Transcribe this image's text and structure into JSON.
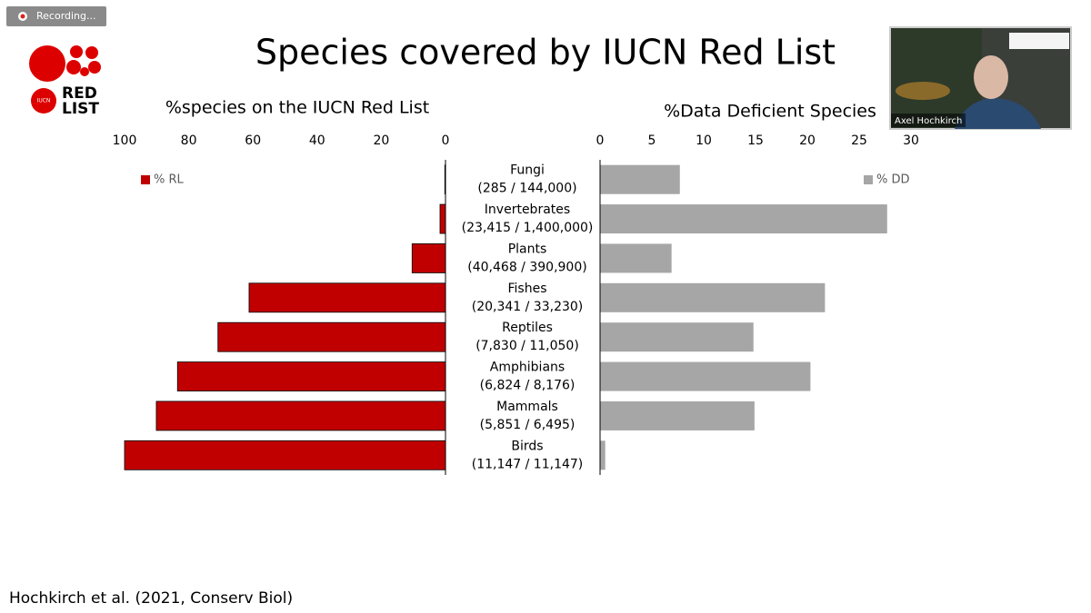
{
  "slide": {
    "recording": "Recording...",
    "title": "Species covered by IUCN Red List",
    "citation": "Hochkirch et al. (2021, Conserv Biol)",
    "logo": {
      "small": "IUCN",
      "line1": "RED",
      "line2": "LIST"
    },
    "speaker": "Axel Hochkirch"
  },
  "chart_data": [
    {
      "type": "bar",
      "orientation": "horizontal",
      "title": "%species on the IUCN Red List",
      "categories": [
        "Fungi",
        "Invertebrates",
        "Plants",
        "Fishes",
        "Reptiles",
        "Amphibians",
        "Mammals",
        "Birds"
      ],
      "category_counts": [
        "(285 / 144,000)",
        "(23,415 / 1,400,000)",
        "(40,468 / 390,900)",
        "(20,341 / 33,230)",
        "(7,830 / 11,050)",
        "(6,824 / 8,176)",
        "(5,851 / 6,495)",
        "(11,147 / 11,147)"
      ],
      "series": [
        {
          "name": "% RL",
          "color": "#c00000",
          "values": [
            0.2,
            1.7,
            10.4,
            61.2,
            70.9,
            83.5,
            90.1,
            100
          ]
        }
      ],
      "xlim": [
        100,
        0
      ],
      "xticks": [
        100,
        80,
        60,
        40,
        20,
        0
      ],
      "grid": false,
      "legend": "upper left"
    },
    {
      "type": "bar",
      "orientation": "horizontal",
      "title": "%Data Deficient Species",
      "series": [
        {
          "name": "% DD",
          "color": "#a6a6a6",
          "values": [
            7.7,
            27.7,
            6.9,
            21.7,
            14.8,
            20.3,
            14.9,
            0.5
          ]
        }
      ],
      "xlim": [
        0,
        30
      ],
      "xticks": [
        0,
        5,
        10,
        15,
        20,
        25,
        30
      ],
      "grid": false,
      "legend": "upper right"
    }
  ]
}
